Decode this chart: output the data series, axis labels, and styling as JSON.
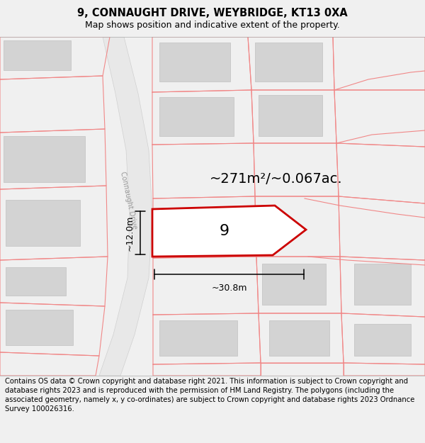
{
  "title": "9, CONNAUGHT DRIVE, WEYBRIDGE, KT13 0XA",
  "subtitle": "Map shows position and indicative extent of the property.",
  "footer": "Contains OS data © Crown copyright and database right 2021. This information is subject to Crown copyright and database rights 2023 and is reproduced with the permission of HM Land Registry. The polygons (including the associated geometry, namely x, y co-ordinates) are subject to Crown copyright and database rights 2023 Ordnance Survey 100026316.",
  "road_label": "Connaught Drive",
  "area_label": "~271m²/~0.067ac.",
  "plot_number": "9",
  "width_label": "~30.8m",
  "height_label": "~12.0m",
  "title_fontsize": 10.5,
  "subtitle_fontsize": 9,
  "footer_fontsize": 7.2,
  "road_label_fontsize": 7,
  "area_label_fontsize": 14,
  "plot_number_fontsize": 16,
  "dim_fontsize": 9,
  "map_bg": "#ffffff",
  "road_fill": "#e8e8e8",
  "building_fill": "#d3d3d3",
  "building_edge": "#c0c0c0",
  "pink": "#f08888",
  "plot_edge": "#cc0000",
  "plot_fill": "#ffffff",
  "footer_bg": "#f0f0f0",
  "title_bg": "#ffffff"
}
